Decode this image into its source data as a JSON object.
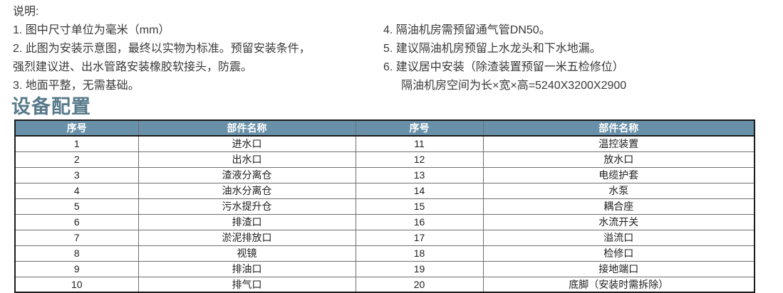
{
  "notes": {
    "title": "说明:",
    "left_items": [
      "1. 图中尺寸单位为毫米（mm）",
      "2. 此图为安装示意图，最终以实物为标准。预留安装条件，",
      "强烈建议进、出水管路安装橡胶软接头，防震。",
      "3. 地面平整，无需基础。"
    ],
    "right_items": [
      "4. 隔油机房需预留通气管DN50。",
      "5. 建议隔油机房预留上水龙头和下水地漏。",
      "6. 建议居中安装（除渣装置预留一米五检修位）",
      "隔油机房空间为长×宽×高=5240X3200X2900"
    ]
  },
  "section": {
    "title": "设备配置"
  },
  "table": {
    "headers": [
      "序号",
      "部件名称",
      "序号",
      "部件名称"
    ],
    "rows": [
      [
        "1",
        "进水口",
        "11",
        "温控装置"
      ],
      [
        "2",
        "出水口",
        "12",
        "放水口"
      ],
      [
        "3",
        "渣液分离仓",
        "13",
        "电缆护套"
      ],
      [
        "4",
        "油水分离仓",
        "14",
        "水泵"
      ],
      [
        "5",
        "污水提升仓",
        "15",
        "耦合座"
      ],
      [
        "6",
        "排渣口",
        "16",
        "水流开关"
      ],
      [
        "7",
        "淤泥排放口",
        "17",
        "溢流口"
      ],
      [
        "8",
        "视镜",
        "18",
        "检修口"
      ],
      [
        "9",
        "排油口",
        "19",
        "接地端口"
      ],
      [
        "10",
        "排气口",
        "20",
        "底脚（安装时需拆除）"
      ]
    ]
  },
  "colors": {
    "header_bg": "#6891a9",
    "heading": "#587a8b"
  }
}
